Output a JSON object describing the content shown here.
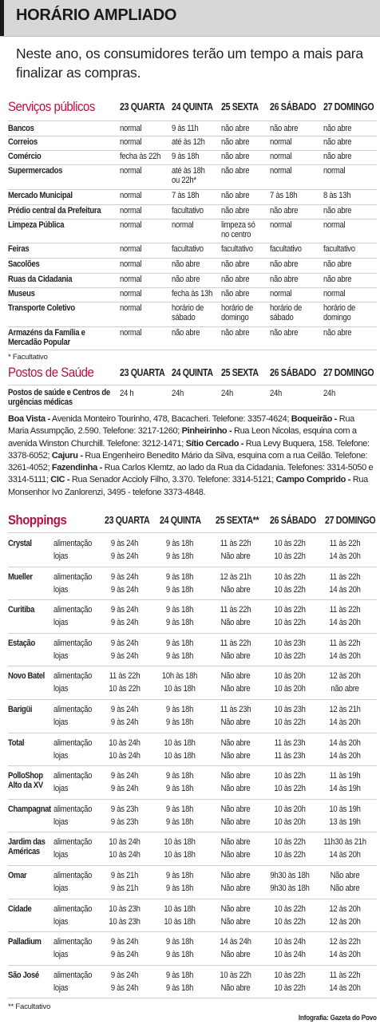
{
  "header": {
    "title": "HORÁRIO AMPLIADO"
  },
  "subtitle": "Neste ano, os consumidores terão um tempo a mais para finalizar as compras.",
  "services": {
    "title": "Serviços públicos",
    "days": [
      "23 QUARTA",
      "24 QUINTA",
      "25 SEXTA",
      "26 SÁBADO",
      "27 DOMINGO"
    ],
    "rows": [
      {
        "label": [
          "Bancos"
        ],
        "values": [
          [
            "normal"
          ],
          [
            "9 às 11h"
          ],
          [
            "não abre"
          ],
          [
            "não abre"
          ],
          [
            "não abre"
          ]
        ]
      },
      {
        "label": [
          "Correios"
        ],
        "values": [
          [
            "normal"
          ],
          [
            "até às 12h"
          ],
          [
            "não abre"
          ],
          [
            "normal"
          ],
          [
            "não abre"
          ]
        ]
      },
      {
        "label": [
          "Comércio"
        ],
        "values": [
          [
            "fecha às 22h"
          ],
          [
            "9 às 18h"
          ],
          [
            "não abre"
          ],
          [
            "normal"
          ],
          [
            "não abre"
          ]
        ]
      },
      {
        "label": [
          "Supermercados"
        ],
        "values": [
          [
            "normal"
          ],
          [
            "até às 18h",
            "ou 22h*"
          ],
          [
            "não abre"
          ],
          [
            "normal"
          ],
          [
            "normal"
          ]
        ]
      },
      {
        "label": [
          "Mercado Municipal"
        ],
        "values": [
          [
            "normal"
          ],
          [
            "7 às 18h"
          ],
          [
            "não abre"
          ],
          [
            "7 às 18h"
          ],
          [
            "8 às 13h"
          ]
        ]
      },
      {
        "label": [
          "Prédio central da Prefeitura"
        ],
        "values": [
          [
            "normal"
          ],
          [
            "facultativo"
          ],
          [
            "não abre"
          ],
          [
            "não abre"
          ],
          [
            "não abre"
          ]
        ]
      },
      {
        "label": [
          "Limpeza Pública"
        ],
        "values": [
          [
            "normal"
          ],
          [
            "normal"
          ],
          [
            "limpeza só",
            "no centro"
          ],
          [
            "normal"
          ],
          [
            "normal"
          ]
        ]
      },
      {
        "label": [
          "Feiras"
        ],
        "values": [
          [
            "normal"
          ],
          [
            "facultativo"
          ],
          [
            "facultativo"
          ],
          [
            "facultativo"
          ],
          [
            "facultativo"
          ]
        ]
      },
      {
        "label": [
          "Sacolões"
        ],
        "values": [
          [
            "normal"
          ],
          [
            "não abre"
          ],
          [
            "não abre"
          ],
          [
            "não abre"
          ],
          [
            "não abre"
          ]
        ]
      },
      {
        "label": [
          "Ruas da Cidadania"
        ],
        "values": [
          [
            "normal"
          ],
          [
            "não abre"
          ],
          [
            "não abre"
          ],
          [
            "não abre"
          ],
          [
            "não abre"
          ]
        ]
      },
      {
        "label": [
          "Museus"
        ],
        "values": [
          [
            "normal"
          ],
          [
            "fecha às 13h"
          ],
          [
            "não abre"
          ],
          [
            "normal"
          ],
          [
            "normal"
          ]
        ]
      },
      {
        "label": [
          "Transporte Coletivo"
        ],
        "values": [
          [
            "normal"
          ],
          [
            "horário de",
            "sábado"
          ],
          [
            "horário de",
            "domingo"
          ],
          [
            "horário de",
            "sábado"
          ],
          [
            "horário de",
            "domingo"
          ]
        ]
      },
      {
        "label": [
          "Armazéns da Família e",
          "Mercadão Popular"
        ],
        "values": [
          [
            "normal"
          ],
          [
            "não abre"
          ],
          [
            "não abre"
          ],
          [
            "não abre"
          ],
          [
            "não abre"
          ]
        ]
      }
    ],
    "footnote": "* Facultativo"
  },
  "health": {
    "title": "Postos de Saúde",
    "days": [
      "23 QUARTA",
      "24 QUINTA",
      "25 SEXTA",
      "26 SÁBADO",
      "27 DOMINGO"
    ],
    "row": {
      "label": [
        "Postos de saúde e Centros de",
        "urgências médicas"
      ],
      "values": [
        "24 h",
        "24h",
        "24h",
        "24h",
        "24h"
      ]
    },
    "addresses": [
      {
        "name": "Boa Vista -",
        "text": " Avenida Monteiro Tourinho, 478, Bacacheri. Telefone: 3357-4624; "
      },
      {
        "name": "Boqueirão -",
        "text": " Rua Maria Assumpção, 2.590. Telefone: 3217-1260; "
      },
      {
        "name": "Pinheirinho -",
        "text": " Rua Leon Nicolas, esquina com a avenida Winston Churchill. Telefone: 3212-1471; "
      },
      {
        "name": "Sítio Cercado -",
        "text": " Rua Levy Buquera, 158. Telefone: 3378-6052; "
      },
      {
        "name": "Cajuru -",
        "text": " Rua Engenheiro Benedito Mário da Silva, esquina com a rua Ceilão. Telefone: 3261-4052; "
      },
      {
        "name": "Fazendinha -",
        "text": " Rua Carlos Klemtz, ao lado da Rua da Cidadania. Telefones: 3314-5050 e 3314-5111; "
      },
      {
        "name": "CIC -",
        "text": " Rua Senador Accioly Filho, 3.370. Telefone: 3314-5121; "
      },
      {
        "name": "Campo Comprido -",
        "text": " Rua Monsenhor Ivo Zanlorenzi, 3495 - telefone 3373-4848."
      }
    ]
  },
  "shoppings": {
    "title": "Shoppings",
    "days": [
      "23 QUARTA",
      "24 QUINTA",
      "25 SEXTA**",
      "26 SÁBADO",
      "27 DOMINGO"
    ],
    "kinds": [
      "alimentação",
      "lojas"
    ],
    "malls": [
      {
        "name": [
          "Crystal"
        ],
        "food": [
          "9 às 24h",
          "9 às 18h",
          "11 às 22h",
          "10 às 22h",
          "11 às 22h"
        ],
        "shops": [
          "9 às 24h",
          "9 às 18h",
          "Não abre",
          "10 às 22h",
          "14 às 20h"
        ]
      },
      {
        "name": [
          "Mueller"
        ],
        "food": [
          "9 às 24h",
          "9 às 18h",
          "12 às 21h",
          "10 às 22h",
          "11 às 22h"
        ],
        "shops": [
          "9 às 24h",
          "9 às 18h",
          "Não abre",
          "10 às 22h",
          "14 às 20h"
        ]
      },
      {
        "name": [
          "Curitiba"
        ],
        "food": [
          "9 às 24h",
          "9 às 18h",
          "11 às 22h",
          "10 às 22h",
          "11 às 22h"
        ],
        "shops": [
          "9 às 24h",
          "9 às 18h",
          "Não abre",
          "10 às 22h",
          "14 às 20h"
        ]
      },
      {
        "name": [
          "Estação"
        ],
        "food": [
          "9 às 24h",
          "9 às 18h",
          "11 às 22h",
          "10 às 23h",
          "11 às 22h"
        ],
        "shops": [
          "9 às 24h",
          "9 às 18h",
          "Não abre",
          "10 às 22h",
          "14 às 20h"
        ]
      },
      {
        "name": [
          "Novo Batel"
        ],
        "food": [
          "11 às 22h",
          "10h às 18h",
          "Não abre",
          "10 às 20h",
          "12 às 20h"
        ],
        "shops": [
          "10 às 22h",
          "10 às 18h",
          "Não abre",
          "10 às 20h",
          "não abre"
        ]
      },
      {
        "name": [
          "Barigüi"
        ],
        "food": [
          "9 às 24h",
          "9 às 18h",
          "11 às 23h",
          "10 às 23h",
          "12 às 21h"
        ],
        "shops": [
          "9 às 24h",
          "9 às 18h",
          "Não abre",
          "10 às 22h",
          "14 às 20h"
        ]
      },
      {
        "name": [
          "Total"
        ],
        "food": [
          "10 às 24h",
          "10 às 18h",
          "Não abre",
          "11 às 23h",
          "14 às 20h"
        ],
        "shops": [
          "10 às 24h",
          "10 às 18h",
          "Não abre",
          "11 às 23h",
          "14 às 20h"
        ]
      },
      {
        "name": [
          "PolloShop",
          "Alto da XV"
        ],
        "food": [
          "9 às 24h",
          "9 às 18h",
          "Não abre",
          "10 às 22h",
          "11 às 19h"
        ],
        "shops": [
          "9 às 24h",
          "9 às 18h",
          "Não abre",
          "10 às 22h",
          "14 às 19h"
        ]
      },
      {
        "name": [
          "Champagnat"
        ],
        "food": [
          "9 às 23h",
          "9 às 18h",
          "Não abre",
          "10 às 20h",
          "10 às 19h"
        ],
        "shops": [
          "9 às 23h",
          "9 às 18h",
          "Não abre",
          "10 às 20h",
          "13 às 19h"
        ]
      },
      {
        "name": [
          "Jardim das",
          "Américas"
        ],
        "food": [
          "10 às 24h",
          "10 às 18h",
          "Não abre",
          "10 às 22h",
          "11h30 às 21h"
        ],
        "shops": [
          "10 às 24h",
          "10 às 18h",
          "Não abre",
          "10 às 22h",
          "14 às 20h"
        ]
      },
      {
        "name": [
          "Omar"
        ],
        "food": [
          "9 às 21h",
          "9 às 18h",
          "Não abre",
          "9h30 às 18h",
          "Não abre"
        ],
        "shops": [
          "9 às 21h",
          "9 às 18h",
          "Não abre",
          "9h30 às 18h",
          "Não abre"
        ]
      },
      {
        "name": [
          "Cidade"
        ],
        "food": [
          "10 às 23h",
          "10 às 18h",
          "Não abre",
          "10 às 22h",
          "12 às 20h"
        ],
        "shops": [
          "10 às 23h",
          "10 às 18h",
          "Não abre",
          "10 às 22h",
          "12 às 20h"
        ]
      },
      {
        "name": [
          "Palladium"
        ],
        "food": [
          "9 às 24h",
          "9 às 18h",
          "14 às 24h",
          "10 às 24h",
          "12 às 22h"
        ],
        "shops": [
          "9 às 24h",
          "9 às 18h",
          "Não abre",
          "10 às 24h",
          "14 às 20h"
        ]
      },
      {
        "name": [
          "São José"
        ],
        "food": [
          "9 às 24h",
          "9 às 18h",
          "10 às 22h",
          "10 às 22h",
          "11 às 22h"
        ],
        "shops": [
          "9 às 24h",
          "9 às 18h",
          "Não abre",
          "10 às 22h",
          "14 às 20h"
        ]
      }
    ],
    "footnote": "** Facultativo"
  },
  "credit": "Infografia: Gazeta do Povo",
  "colors": {
    "accent": "#b5123f",
    "header_bg": "#d7d7d7",
    "rule": "#cfcfcf"
  }
}
